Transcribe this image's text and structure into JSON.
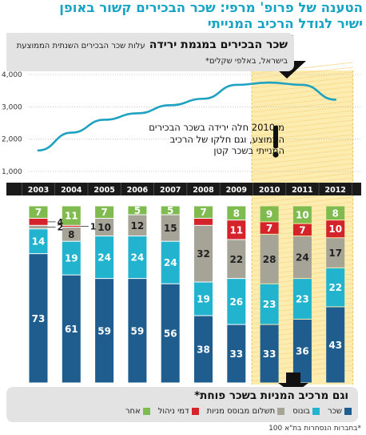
{
  "headline": {
    "line1": "הטענה של פרופ' מרפי: שכר הבכירים קשור באופן",
    "line2": "ישיר לגודל הרכיב המנייתי"
  },
  "top_panel": {
    "title": "שכר הבכירים במגמת ירידה",
    "subtitle": "עלות שכר הבכירים השנתית הממוצעת בישראל, באלפי שקלים*"
  },
  "callout": {
    "text": "מ־2010 חלה ירידה בשכר הבכירים הממוצע, וגם חלקו של הרכיב המנייתי בשכר קטן"
  },
  "legend": {
    "title": "וגם מרכיב המניות בשכר פוחת*",
    "items": [
      {
        "label": "שכר",
        "color": "#1e5d8e"
      },
      {
        "label": "בונוס",
        "color": "#22b4cf"
      },
      {
        "label": "תשלום מבוסס מניות",
        "color": "#a6a397"
      },
      {
        "label": "דמי ניהול",
        "color": "#d5232b"
      },
      {
        "label": "אחר",
        "color": "#7fbb4e"
      }
    ]
  },
  "footnote": "*בחברות הנסחרות בת\"א 100",
  "colors": {
    "line": "#1fa2c1",
    "salary": "#1e5d8e",
    "bonus": "#22b4cf",
    "equity": "#a6a397",
    "mgmt_fee": "#d5232b",
    "other": "#7fbb4e",
    "highlight": "#fdecb0",
    "arrow": "#111111"
  },
  "chart_data": [
    {
      "type": "line",
      "title": "שכר הבכירים במגמת ירידה",
      "x": [
        "2003",
        "2004",
        "2005",
        "2006",
        "2007",
        "2008",
        "2009",
        "2010",
        "2011",
        "2012"
      ],
      "ylim": [
        1000,
        4000
      ],
      "yticks": [
        "1,000",
        "2,000",
        "3,000",
        "4,000"
      ],
      "yticks_values": [
        1000,
        2000,
        3000,
        4000
      ],
      "series": [
        {
          "values": [
            1650,
            2200,
            2600,
            2800,
            3050,
            3250,
            3680,
            3750,
            3680,
            3220
          ]
        }
      ],
      "highlight_range": [
        "2010",
        "2012"
      ]
    },
    {
      "type": "bar",
      "stacked": true,
      "unit": "%",
      "categories": [
        "2003",
        "2004",
        "2005",
        "2006",
        "2007",
        "2008",
        "2009",
        "2010",
        "2011",
        "2012"
      ],
      "series": [
        {
          "name": "שכר",
          "values": [
            73,
            61,
            59,
            59,
            56,
            38,
            33,
            33,
            36,
            43
          ]
        },
        {
          "name": "בונוס",
          "values": [
            14,
            19,
            24,
            24,
            24,
            19,
            26,
            23,
            23,
            22
          ]
        },
        {
          "name": "תשלום מבוסס מניות",
          "values": [
            2,
            8,
            10,
            12,
            15,
            32,
            22,
            28,
            24,
            17
          ]
        },
        {
          "name": "דמי ניהול",
          "values": [
            4,
            1,
            0,
            0,
            0,
            4,
            11,
            7,
            7,
            10
          ]
        },
        {
          "name": "אחר",
          "values": [
            7,
            11,
            7,
            5,
            5,
            7,
            8,
            9,
            10,
            8
          ]
        }
      ],
      "outside_labels": [
        {
          "category": "2003",
          "series": "דמי ניהול",
          "text": "4"
        },
        {
          "category": "2003",
          "series": "תשלום מבוסס מניות",
          "text": "2"
        },
        {
          "category": "2004",
          "series": "דמי ניהול",
          "text": "1"
        }
      ]
    }
  ]
}
